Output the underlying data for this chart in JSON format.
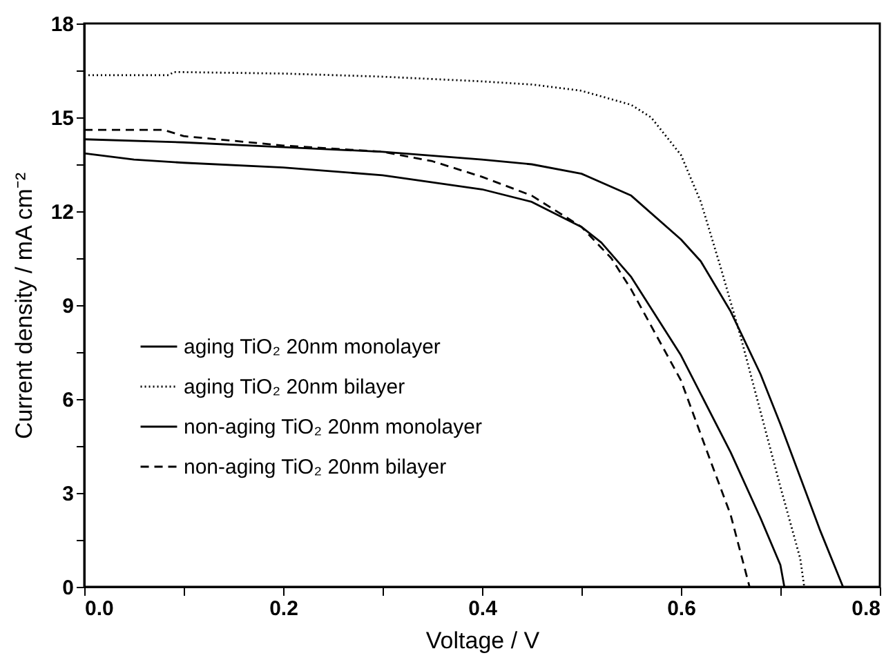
{
  "chart_data": {
    "type": "line",
    "xlabel": "Voltage / V",
    "ylabel": "Current density / mA cm⁻²",
    "xlim": [
      0,
      0.8
    ],
    "ylim": [
      0,
      18
    ],
    "xticks": [
      {
        "value": 0,
        "label": "0.0"
      },
      {
        "value": 0.1,
        "label": null
      },
      {
        "value": 0.2,
        "label": "0.2"
      },
      {
        "value": 0.3,
        "label": null
      },
      {
        "value": 0.4,
        "label": "0.4"
      },
      {
        "value": 0.5,
        "label": null
      },
      {
        "value": 0.6,
        "label": "0.6"
      },
      {
        "value": 0.7,
        "label": null
      },
      {
        "value": 0.8,
        "label": "0.8"
      }
    ],
    "yticks": [
      0,
      {
        "value": 1.5,
        "label": null
      },
      3,
      {
        "value": 4.5,
        "label": null
      },
      6,
      {
        "value": 7.5,
        "label": null
      },
      9,
      {
        "value": 10.5,
        "label": null
      },
      12,
      {
        "value": 13.5,
        "label": null
      },
      15,
      {
        "value": 16.5,
        "label": null
      },
      18
    ],
    "grid": false,
    "legend": "left",
    "marker": "none",
    "series": [
      {
        "name": "aging TiO₂ 20nm monolayer",
        "color": "#000000",
        "line_style": "solid",
        "x": [
          0,
          0.1,
          0.2,
          0.3,
          0.4,
          0.45,
          0.5,
          0.55,
          0.6,
          0.62,
          0.65,
          0.68,
          0.7,
          0.72,
          0.74,
          0.763
        ],
        "values": [
          14.3,
          14.2,
          14.05,
          13.9,
          13.65,
          13.5,
          13.2,
          12.5,
          11.1,
          10.4,
          8.8,
          6.8,
          5.2,
          3.5,
          1.8,
          0
        ]
      },
      {
        "name": "aging TiO₂ 20nm bilayer",
        "color": "#000000",
        "line_style": "dotted",
        "x": [
          0,
          0.085,
          0.09,
          0.2,
          0.3,
          0.4,
          0.45,
          0.5,
          0.55,
          0.57,
          0.6,
          0.62,
          0.64,
          0.66,
          0.68,
          0.7,
          0.72,
          0.724
        ],
        "values": [
          16.35,
          16.35,
          16.45,
          16.4,
          16.3,
          16.15,
          16.05,
          15.85,
          15.4,
          15.0,
          13.8,
          12.3,
          10.2,
          8.0,
          5.6,
          3.2,
          0.9,
          0
        ]
      },
      {
        "name": "non-aging TiO₂ 20nm monolayer",
        "color": "#000000",
        "line_style": "solid",
        "x": [
          0,
          0.05,
          0.1,
          0.2,
          0.3,
          0.4,
          0.45,
          0.5,
          0.52,
          0.55,
          0.6,
          0.65,
          0.68,
          0.7,
          0.704
        ],
        "values": [
          13.85,
          13.65,
          13.55,
          13.4,
          13.15,
          12.7,
          12.3,
          11.5,
          11.0,
          9.9,
          7.4,
          4.3,
          2.2,
          0.7,
          0
        ]
      },
      {
        "name": "non-aging TiO₂ 20nm bilayer",
        "color": "#000000",
        "line_style": "dashed",
        "x": [
          0,
          0.08,
          0.1,
          0.2,
          0.3,
          0.35,
          0.4,
          0.45,
          0.5,
          0.53,
          0.55,
          0.6,
          0.63,
          0.65,
          0.669
        ],
        "values": [
          14.6,
          14.6,
          14.4,
          14.1,
          13.9,
          13.6,
          13.1,
          12.5,
          11.5,
          10.5,
          9.5,
          6.6,
          4.0,
          2.3,
          0
        ]
      }
    ]
  }
}
